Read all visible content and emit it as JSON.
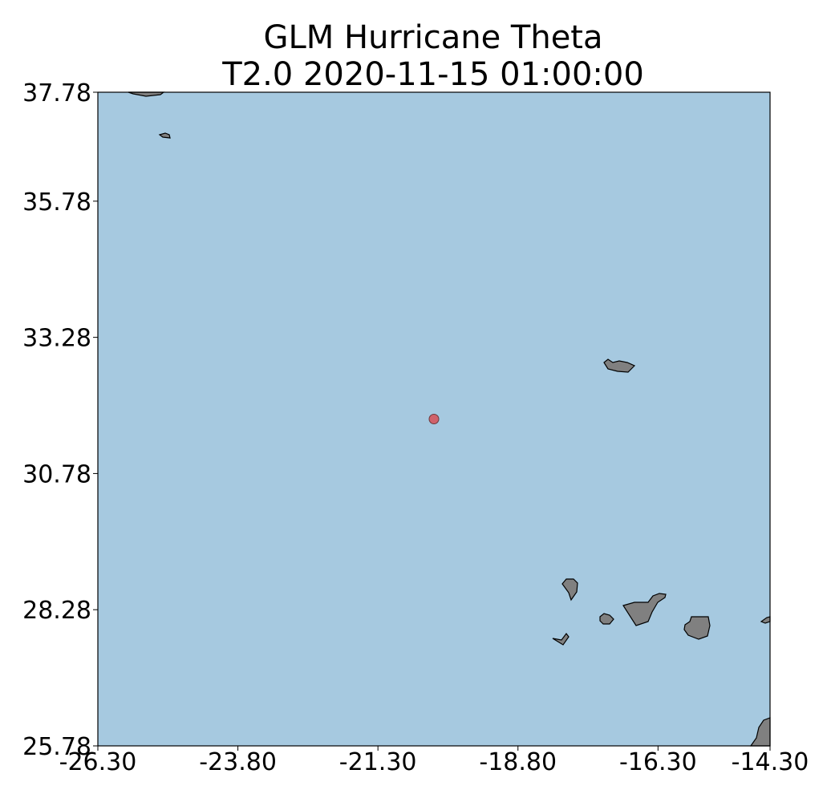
{
  "title": {
    "line1": "GLM Hurricane Theta",
    "line2": "T2.0 2020-11-15 01:00:00"
  },
  "map": {
    "lon_range": [
      -26.3,
      -14.3
    ],
    "lat_range": [
      25.78,
      37.78
    ],
    "x_ticks": [
      "-26.30",
      "-23.80",
      "-21.30",
      "-18.80",
      "-16.30",
      "-14.30"
    ],
    "x_tick_values": [
      -26.3,
      -23.8,
      -21.3,
      -18.8,
      -16.3,
      -14.3
    ],
    "y_ticks": [
      "37.78",
      "35.78",
      "33.28",
      "30.78",
      "28.28",
      "25.78"
    ],
    "y_tick_values": [
      37.78,
      35.78,
      33.28,
      30.78,
      28.28,
      25.78
    ],
    "ocean_color": "#a6c9e0",
    "land_color": "#808080",
    "marker_color": "#d0626b",
    "storm_center": {
      "lon": -20.3,
      "lat": 31.78
    }
  }
}
